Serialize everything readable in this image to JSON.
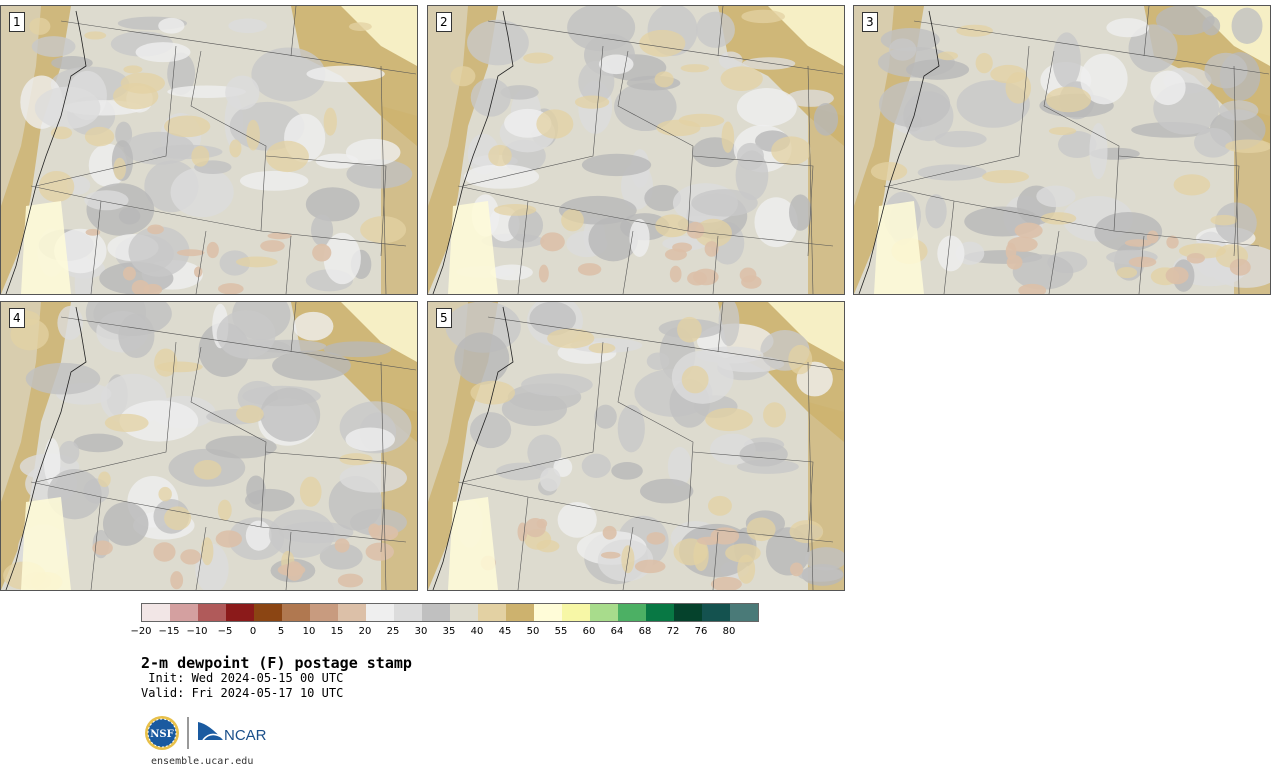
{
  "panels": [
    {
      "label": "1"
    },
    {
      "label": "2"
    },
    {
      "label": "3"
    },
    {
      "label": "4"
    },
    {
      "label": "5"
    }
  ],
  "colorbar": {
    "colors": [
      "#f2e6e6",
      "#d4a0a0",
      "#b05a5a",
      "#8b1a1a",
      "#8b4513",
      "#b07850",
      "#c89b7f",
      "#dcc0a8",
      "#efefef",
      "#dcdcdc",
      "#c0c0c0",
      "#dddbcf",
      "#e3d1a3",
      "#cdb26e",
      "#fffcd8",
      "#f7f7a6",
      "#a8dc8c",
      "#4cb064",
      "#087844",
      "#05422c",
      "#14524f",
      "#4a7a78"
    ],
    "tick_labels": [
      "−20",
      "−15",
      "−10",
      "−5",
      "0",
      "5",
      "10",
      "15",
      "20",
      "25",
      "30",
      "35",
      "40",
      "45",
      "50",
      "55",
      "60",
      "64",
      "68",
      "72",
      "76",
      "80"
    ]
  },
  "title": "2-m dewpoint (F) postage stamp",
  "init": " Init: Wed 2024-05-15 00 UTC",
  "valid": "Valid: Fri 2024-05-17 10 UTC",
  "logos": {
    "nsf": "NSF",
    "ncar": "NCAR"
  },
  "footer": "ensemble.ucar.edu"
}
